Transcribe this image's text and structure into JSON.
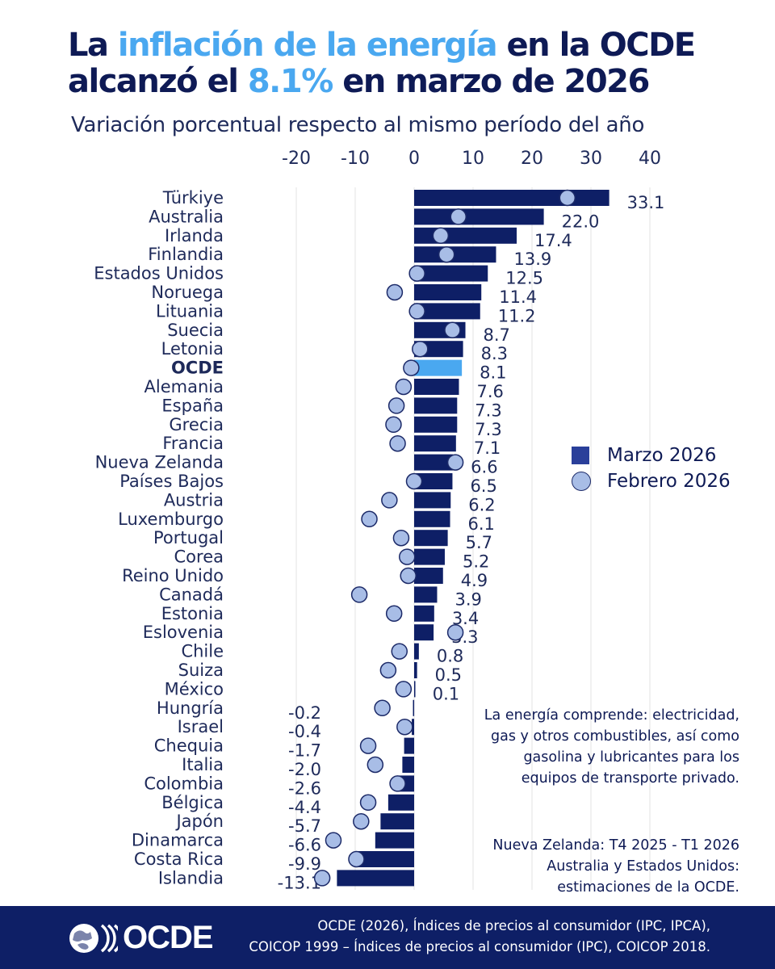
{
  "title": {
    "part1": "La ",
    "part2": "inflación de la energía",
    "part3": " en la OCDE",
    "part4": "alcanzó el ",
    "part5": "8.1%",
    "part6": " en marzo de 2026"
  },
  "subtitle": "Variación porcentual respecto al mismo período del año",
  "legend": {
    "march": "Marzo 2026",
    "february": "Febrero 2026"
  },
  "note_energy": [
    "La energía comprende: electricidad,",
    "gas y otros combustibles, así como",
    "gasolina y lubricantes para los",
    "equipos de transporte privado."
  ],
  "note_periods": [
    "Nueva Zelanda: T4 2025 - T1 2026",
    "Australia y Estados Unidos:",
    "estimaciones de la OCDE."
  ],
  "footer": {
    "logo": "OCDE",
    "source_line1": "OCDE (2026), Índices de precios al consumidor (IPC, IPCA),",
    "source_line2": "COICOP 1999 – Índices de precios al consumidor (IPC), COICOP 2018."
  },
  "colors": {
    "bar": "#0e1f66",
    "highlight": "#4aa8f0",
    "dot_fill": "#a8bde6",
    "dot_stroke": "#1c2a68",
    "title": "#0e1a55"
  },
  "chart_data": {
    "type": "bar",
    "orientation": "horizontal",
    "xlim": [
      -20,
      40
    ],
    "xticks": [
      "-20",
      "-10",
      "0",
      "10",
      "20",
      "30",
      "40"
    ],
    "xtick_values": [
      -20,
      -10,
      0,
      10,
      20,
      30,
      40
    ],
    "grid": true,
    "legend_position": "right",
    "highlight": "OCDE",
    "categories": [
      "Türkiye",
      "Australia",
      "Irlanda",
      "Finlandia",
      "Estados Unidos",
      "Noruega",
      "Lituania",
      "Suecia",
      "Letonia",
      "OCDE",
      "Alemania",
      "España",
      "Grecia",
      "Francia",
      "Nueva Zelanda",
      "Países Bajos",
      "Austria",
      "Luxemburgo",
      "Portugal",
      "Corea",
      "Reino Unido",
      "Canadá",
      "Estonia",
      "Eslovenia",
      "Chile",
      "Suiza",
      "México",
      "Hungría",
      "Israel",
      "Chequia",
      "Italia",
      "Colombia",
      "Bélgica",
      "Japón",
      "Dinamarca",
      "Costa Rica",
      "Islandia"
    ],
    "series": [
      {
        "name": "Marzo 2026",
        "values": [
          33.1,
          22.0,
          17.4,
          13.9,
          12.5,
          11.4,
          11.2,
          8.7,
          8.3,
          8.1,
          7.6,
          7.3,
          7.3,
          7.1,
          6.6,
          6.5,
          6.2,
          6.1,
          5.7,
          5.2,
          4.9,
          3.9,
          3.4,
          3.3,
          0.8,
          0.5,
          0.1,
          -0.2,
          -0.4,
          -1.7,
          -2.0,
          -2.6,
          -4.4,
          -5.7,
          -6.6,
          -9.9,
          -13.1
        ],
        "labels": [
          "33.1",
          "22.0",
          "17.4",
          "13.9",
          "12.5",
          "11.4",
          "11.2",
          "8.7",
          "8.3",
          "8.1",
          "7.6",
          "7.3",
          "7.3",
          "7.1",
          "6.6",
          "6.5",
          "6.2",
          "6.1",
          "5.7",
          "5.2",
          "4.9",
          "3.9",
          "3.4",
          "3.3",
          "0.8",
          "0.5",
          "0.1",
          "-0.2",
          "-0.4",
          "-1.7",
          "-2.0",
          "-2.6",
          "-4.4",
          "-5.7",
          "-6.6",
          "-9.9",
          "-13.1"
        ]
      },
      {
        "name": "Febrero 2026",
        "values": [
          26.0,
          7.5,
          4.5,
          5.5,
          0.5,
          -3.3,
          0.5,
          6.5,
          1.0,
          -0.5,
          -1.8,
          -3.0,
          -3.5,
          -2.8,
          7.0,
          0.0,
          -4.2,
          -7.6,
          -2.2,
          -1.2,
          -1.0,
          -9.3,
          -3.4,
          7.0,
          -2.5,
          -4.4,
          -1.8,
          -5.4,
          -1.6,
          -7.8,
          -6.6,
          -2.8,
          -7.8,
          -9.0,
          -13.7,
          -9.8,
          -15.6
        ]
      }
    ]
  }
}
